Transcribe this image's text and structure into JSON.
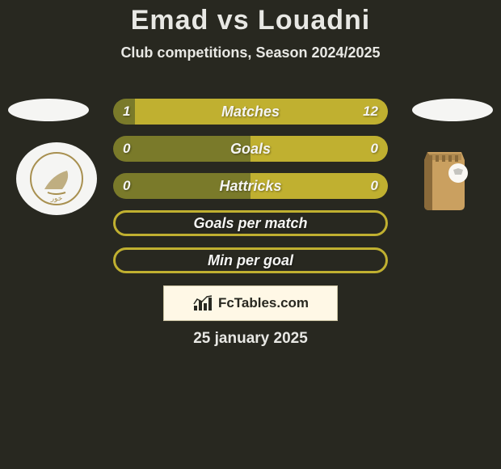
{
  "title": "Emad vs Louadni",
  "title_fontsize": 34,
  "title_color": "#e8e8e4",
  "subtitle": "Club competitions, Season 2024/2025",
  "subtitle_fontsize": 18,
  "background_color": "#282820",
  "ellipse_color": "#f5f5f3",
  "bars": [
    {
      "label": "Matches",
      "left": "1",
      "right": "12",
      "left_frac": 0.08,
      "right_frac": 0.92,
      "left_color": "#7a7a2a",
      "right_color": "#c0b030",
      "border": null
    },
    {
      "label": "Goals",
      "left": "0",
      "right": "0",
      "left_frac": 0.5,
      "right_frac": 0.5,
      "left_color": "#7a7a2a",
      "right_color": "#c0b030",
      "border": null
    },
    {
      "label": "Hattricks",
      "left": "0",
      "right": "0",
      "left_frac": 0.5,
      "right_frac": 0.5,
      "left_color": "#7a7a2a",
      "right_color": "#c0b030",
      "border": null
    },
    {
      "label": "Goals per match",
      "left": "",
      "right": "",
      "left_frac": 0,
      "right_frac": 0,
      "left_color": null,
      "right_color": null,
      "border": "#c0b030"
    },
    {
      "label": "Min per goal",
      "left": "",
      "right": "",
      "left_frac": 0,
      "right_frac": 0,
      "left_color": null,
      "right_color": null,
      "border": "#c0b030"
    }
  ],
  "bar_label_fontsize": 18,
  "bar_val_fontsize": 17,
  "club_left_bg": "#f5f5f3",
  "club_left_accent": "#a89050",
  "club_right_wall": "#caa060",
  "club_right_shadow": "#8a6a3a",
  "fctables_text": "FcTables.com",
  "fctables_fontsize": 17,
  "fctables_icon_color": "#282820",
  "date": "25 january 2025",
  "date_fontsize": 19
}
